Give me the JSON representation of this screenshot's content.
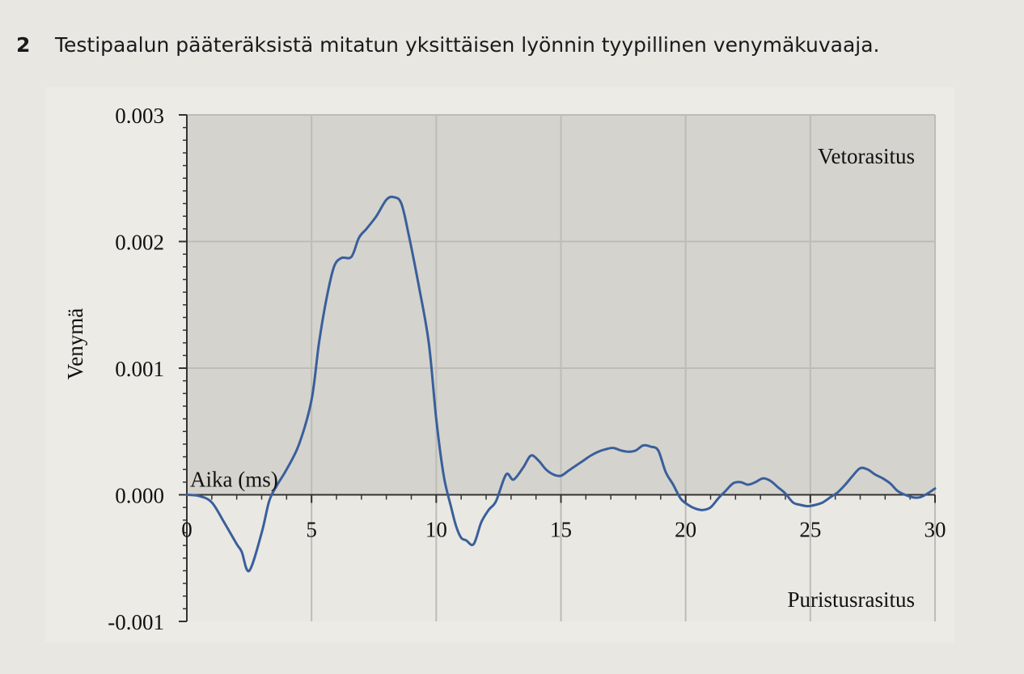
{
  "figure": {
    "number": "2",
    "caption": "Testipaalun pääteräksistä mitatun yksittäisen lyönnin tyypillinen venymäkuvaaja."
  },
  "chart_data": {
    "type": "line",
    "xlabel": "Aika (ms)",
    "ylabel": "Venymä",
    "xlim": [
      0,
      30
    ],
    "ylim": [
      -0.001,
      0.003
    ],
    "x_ticks": [
      0,
      5,
      10,
      15,
      20,
      25,
      30
    ],
    "x_tick_labels": [
      "0",
      "5",
      "10",
      "15",
      "20",
      "25",
      "30"
    ],
    "y_ticks": [
      -0.001,
      0,
      0.001,
      0.002,
      0.003
    ],
    "y_tick_labels": [
      "-0.001",
      "0.000",
      "0.001",
      "0.002",
      "0.003"
    ],
    "grid": true,
    "annotations": [
      "Vetorasitus",
      "Puristusrasitus"
    ],
    "colors": {
      "line": "#3a5f9a",
      "plot_positive": "#d4d3ce",
      "plot_negative": "#e9e8e3",
      "grid": "#bdbcb7",
      "axis": "#333333"
    },
    "series": [
      {
        "x": [
          0,
          0.5,
          1.0,
          1.5,
          2.0,
          2.2,
          2.5,
          3.0,
          3.3,
          3.6,
          4.0,
          4.5,
          5.0,
          5.3,
          5.6,
          5.9,
          6.2,
          6.6,
          6.9,
          7.2,
          7.6,
          8.0,
          8.3,
          8.6,
          8.9,
          9.3,
          9.7,
          10.0,
          10.3,
          10.6,
          10.8,
          11.0,
          11.2,
          11.5,
          11.8,
          12.1,
          12.4,
          12.8,
          13.1,
          13.5,
          13.8,
          14.1,
          14.4,
          14.7,
          15.0,
          15.3,
          15.6,
          15.9,
          16.2,
          16.5,
          16.8,
          17.1,
          17.4,
          17.7,
          18.0,
          18.3,
          18.6,
          18.9,
          19.2,
          19.5,
          19.8,
          20.1,
          20.4,
          20.7,
          21.0,
          21.3,
          21.6,
          21.9,
          22.2,
          22.5,
          22.8,
          23.1,
          23.4,
          23.7,
          24.0,
          24.3,
          24.6,
          24.9,
          25.2,
          25.5,
          25.8,
          26.1,
          26.4,
          26.7,
          27.0,
          27.3,
          27.6,
          27.9,
          28.2,
          28.5,
          28.8,
          29.1,
          29.4,
          29.7,
          30.0
        ],
        "values": [
          0.0,
          -1e-05,
          -6e-05,
          -0.00022,
          -0.00039,
          -0.00045,
          -0.0006,
          -0.0003,
          -5e-05,
          7e-05,
          0.0002,
          0.0004,
          0.00075,
          0.0012,
          0.00155,
          0.0018,
          0.00187,
          0.00188,
          0.00203,
          0.0021,
          0.0022,
          0.00233,
          0.00235,
          0.0023,
          0.00205,
          0.00165,
          0.0012,
          0.0006,
          0.00015,
          -0.0001,
          -0.00025,
          -0.00034,
          -0.00036,
          -0.00039,
          -0.00022,
          -0.00012,
          -5e-05,
          0.00016,
          0.00012,
          0.00022,
          0.00031,
          0.00027,
          0.0002,
          0.00016,
          0.00015,
          0.00019,
          0.00023,
          0.00027,
          0.00031,
          0.00034,
          0.00036,
          0.00037,
          0.00035,
          0.00034,
          0.00035,
          0.00039,
          0.00038,
          0.00035,
          0.00018,
          8e-05,
          -3e-05,
          -8e-05,
          -0.00011,
          -0.00012,
          -0.0001,
          -3e-05,
          3e-05,
          9e-05,
          0.0001,
          8e-05,
          0.0001,
          0.00013,
          0.00011,
          6e-05,
          1e-05,
          -6e-05,
          -8e-05,
          -9e-05,
          -8e-05,
          -6e-05,
          -2e-05,
          2e-05,
          8e-05,
          0.00015,
          0.00021,
          0.0002,
          0.00016,
          0.00013,
          9e-05,
          3e-05,
          0.0,
          -2e-05,
          -2e-05,
          1e-05,
          5e-05
        ]
      }
    ]
  }
}
